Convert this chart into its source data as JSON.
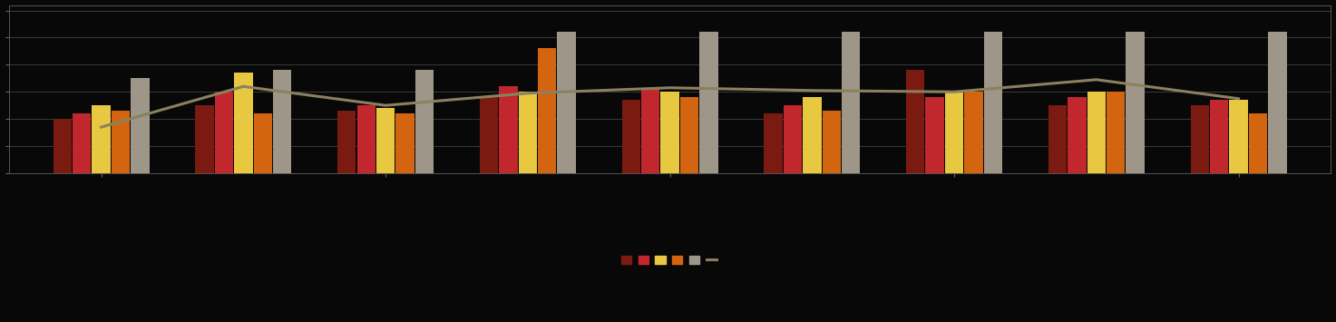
{
  "background_color": "#080808",
  "bar_colors": [
    "#7a1a10",
    "#c1272d",
    "#e8c840",
    "#d46510",
    "#9e9688"
  ],
  "line_color": "#8b8060",
  "bar_width": 0.13,
  "n_groups": 9,
  "series": {
    "dark_red": [
      2.0,
      2.5,
      2.3,
      2.8,
      2.7,
      2.2,
      3.8,
      2.5,
      2.5
    ],
    "red": [
      2.2,
      3.0,
      2.5,
      3.2,
      3.1,
      2.5,
      2.8,
      2.8,
      2.7
    ],
    "yellow": [
      2.5,
      3.7,
      2.4,
      3.0,
      3.0,
      2.8,
      3.0,
      3.0,
      2.7
    ],
    "orange": [
      2.3,
      2.2,
      2.2,
      4.6,
      2.8,
      2.3,
      3.0,
      3.0,
      2.2
    ],
    "gray": [
      3.5,
      3.8,
      3.8,
      5.2,
      5.2,
      5.2,
      5.2,
      5.2,
      5.2
    ]
  },
  "line_values": [
    1.7,
    3.2,
    2.5,
    2.95,
    3.15,
    3.05,
    3.0,
    3.45,
    2.75
  ],
  "line_positions": [
    0,
    1,
    2,
    3,
    4,
    5,
    6,
    7,
    8
  ],
  "ylim": [
    0,
    6.2
  ],
  "grid_color": "#3a3a3a",
  "yticks": [
    0,
    1,
    2,
    3,
    4,
    5,
    6
  ],
  "figsize": [
    14.73,
    3.55
  ],
  "dpi": 100,
  "spine_color": "#555555",
  "tick_color": "#666666"
}
